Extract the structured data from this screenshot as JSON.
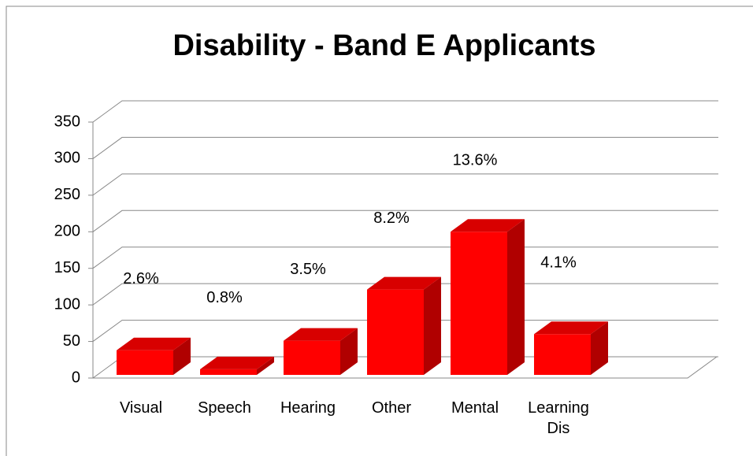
{
  "chart_data": {
    "type": "bar3d",
    "title": "Disability - Band E Applicants",
    "categories": [
      "Visual",
      "Speech",
      "Hearing",
      "Other",
      "Mental",
      "Learning Dis"
    ],
    "values": [
      38,
      12,
      51,
      121,
      200,
      60
    ],
    "value_labels": [
      "2.6%",
      "0.8%",
      "3.5%",
      "8.2%",
      "13.6%",
      "4.1%"
    ],
    "color": "#ff0000",
    "ylim": [
      0,
      350
    ],
    "yticks": [
      0,
      50,
      100,
      150,
      200,
      250,
      300,
      350
    ],
    "grid": true
  }
}
